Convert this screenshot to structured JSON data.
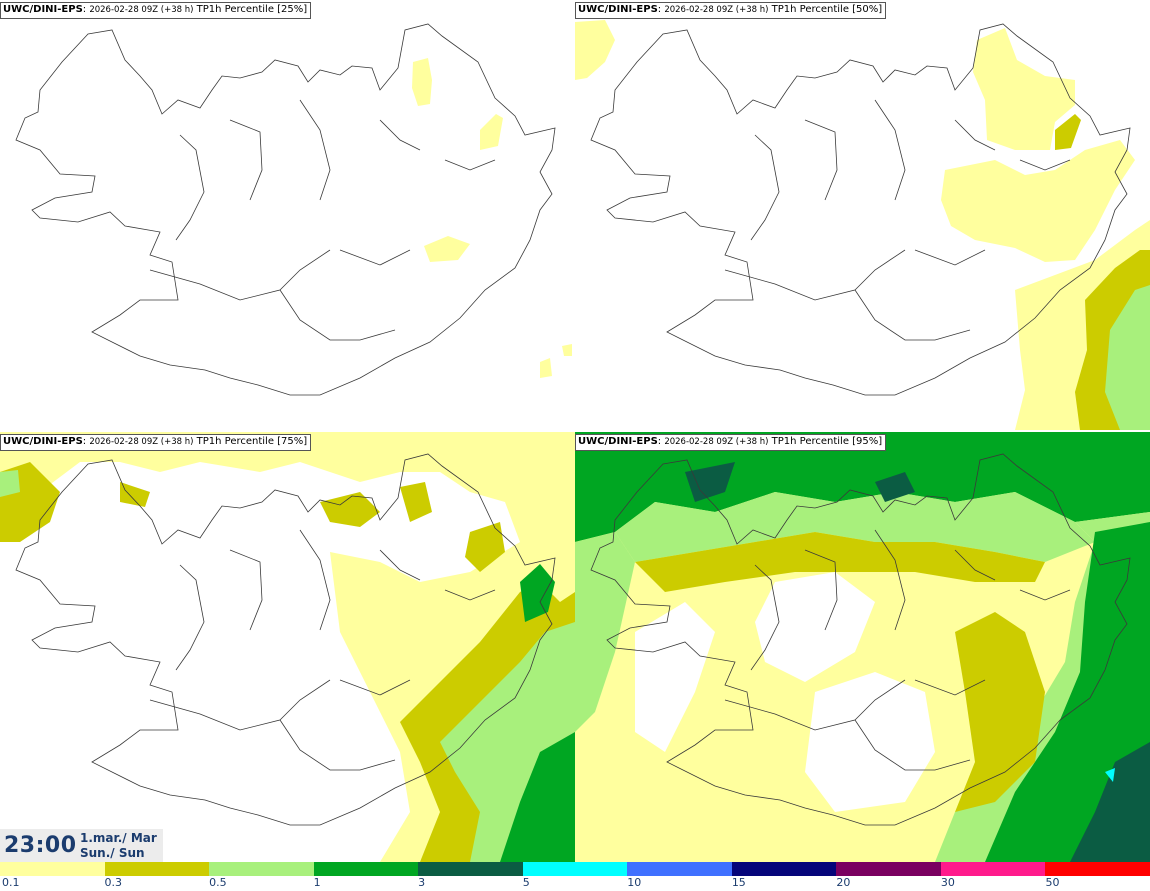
{
  "panels": [
    {
      "model": "UWC/DINI-EPS",
      "run": "2026-02-28 09Z (+38 h)",
      "field": "TP1h Percentile [25%]"
    },
    {
      "model": "UWC/DINI-EPS",
      "run": "2026-02-28 09Z (+38 h)",
      "field": "TP1h Percentile [50%]"
    },
    {
      "model": "UWC/DINI-EPS",
      "run": "2026-02-28 09Z (+38 h)",
      "field": "TP1h Percentile [75%]"
    },
    {
      "model": "UWC/DINI-EPS",
      "run": "2026-02-28 09Z (+38 h)",
      "field": "TP1h Percentile [95%]"
    }
  ],
  "valid_time": {
    "time": "23:00",
    "date_line1": "1.mar./ Mar",
    "date_line2": "Sun./ Sun"
  },
  "colorbar": {
    "levels": [
      "0.1",
      "0.3",
      "0.5",
      "1",
      "3",
      "5",
      "10",
      "15",
      "20",
      "30",
      "50"
    ],
    "colors": [
      "#ffff9e",
      "#cccc00",
      "#a8f07c",
      "#00a622",
      "#0b5c43",
      "#00ffff",
      "#3f70ff",
      "#05057a",
      "#7a0060",
      "#ff1a8c",
      "#ff0000"
    ]
  },
  "map_colors": {
    "light_yellow": "#ffff9e",
    "olive": "#cccc00",
    "light_green": "#a8f07c",
    "green": "#00a622",
    "dark_green": "#0b5c43",
    "cyan": "#00ffff",
    "coast": "#3a3a3a"
  }
}
